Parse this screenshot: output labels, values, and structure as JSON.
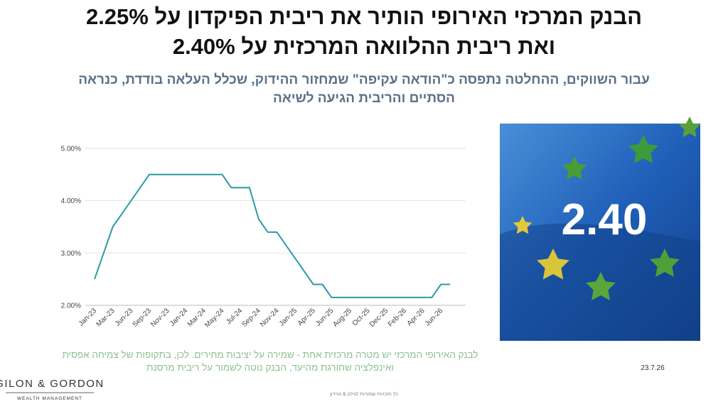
{
  "header": {
    "title": [
      "הבנק המרכזי האירופי הותיר את ריבית הפיקדון על 2.25%",
      "ואת ריבית ההלוואה המרכזית על 2.40%"
    ],
    "subtitle": [
      "עבור השווקים, ההחלטה נתפסה כ\"הודאה עקיפה\" שמחזור ההידוק, שכלל העלאה בודדת, כנראה",
      "הסתיים והריבית הגיעה לשיאה"
    ]
  },
  "chart_data": {
    "type": "line",
    "color": "#2a9ba6",
    "grid": true,
    "categories": [
      "Jan-23",
      null,
      "Mar-23",
      null,
      "Jun-23",
      null,
      "Sep-23",
      null,
      "Nov-23",
      null,
      "Jan-24",
      null,
      "Mar-24",
      null,
      "May-24",
      null,
      "Jul-24",
      null,
      "Sep-24",
      null,
      "Nov-24",
      null,
      "Jan-25",
      null,
      "Apr-25",
      null,
      "Jun-25",
      null,
      "Aug-25",
      null,
      "Oct-25",
      null,
      "Dec-25",
      null,
      "Feb-26",
      null,
      "Apr-26",
      null,
      "Jun-26",
      null
    ],
    "values": [
      2.5,
      3.0,
      3.5,
      3.75,
      4.0,
      4.25,
      4.5,
      4.5,
      4.5,
      4.5,
      4.5,
      4.5,
      4.5,
      4.5,
      4.5,
      4.25,
      4.25,
      4.25,
      3.65,
      3.4,
      3.4,
      3.15,
      2.9,
      2.65,
      2.4,
      2.4,
      2.15,
      2.15,
      2.15,
      2.15,
      2.15,
      2.15,
      2.15,
      2.15,
      2.15,
      2.15,
      2.15,
      2.15,
      2.4,
      2.4
    ],
    "ylim": [
      2,
      5
    ],
    "yticks": [
      {
        "value": 2,
        "label": "2.00%"
      },
      {
        "value": 3,
        "label": "3.00%"
      },
      {
        "value": 4,
        "label": "4.00%"
      },
      {
        "value": 5,
        "label": "5.00%"
      }
    ]
  },
  "image_label": "2.40",
  "note": [
    "לבנק האירופי המרכזי יש מטרה מרכזית אחת - שמירה על יציבות מחירים. לכן, בתקופות של צמיחה אפסית",
    "ואינפלציה שחורגת מהיעד, הבנק נוטה לשמור על ריבית מרסנת"
  ],
  "date": "23.7.26",
  "logo": {
    "name": "GILON & GORDON",
    "tagline": "WEALTH MANAGEMENT"
  },
  "footer": "כל הזכויות שמורות לגילון & גורדון"
}
